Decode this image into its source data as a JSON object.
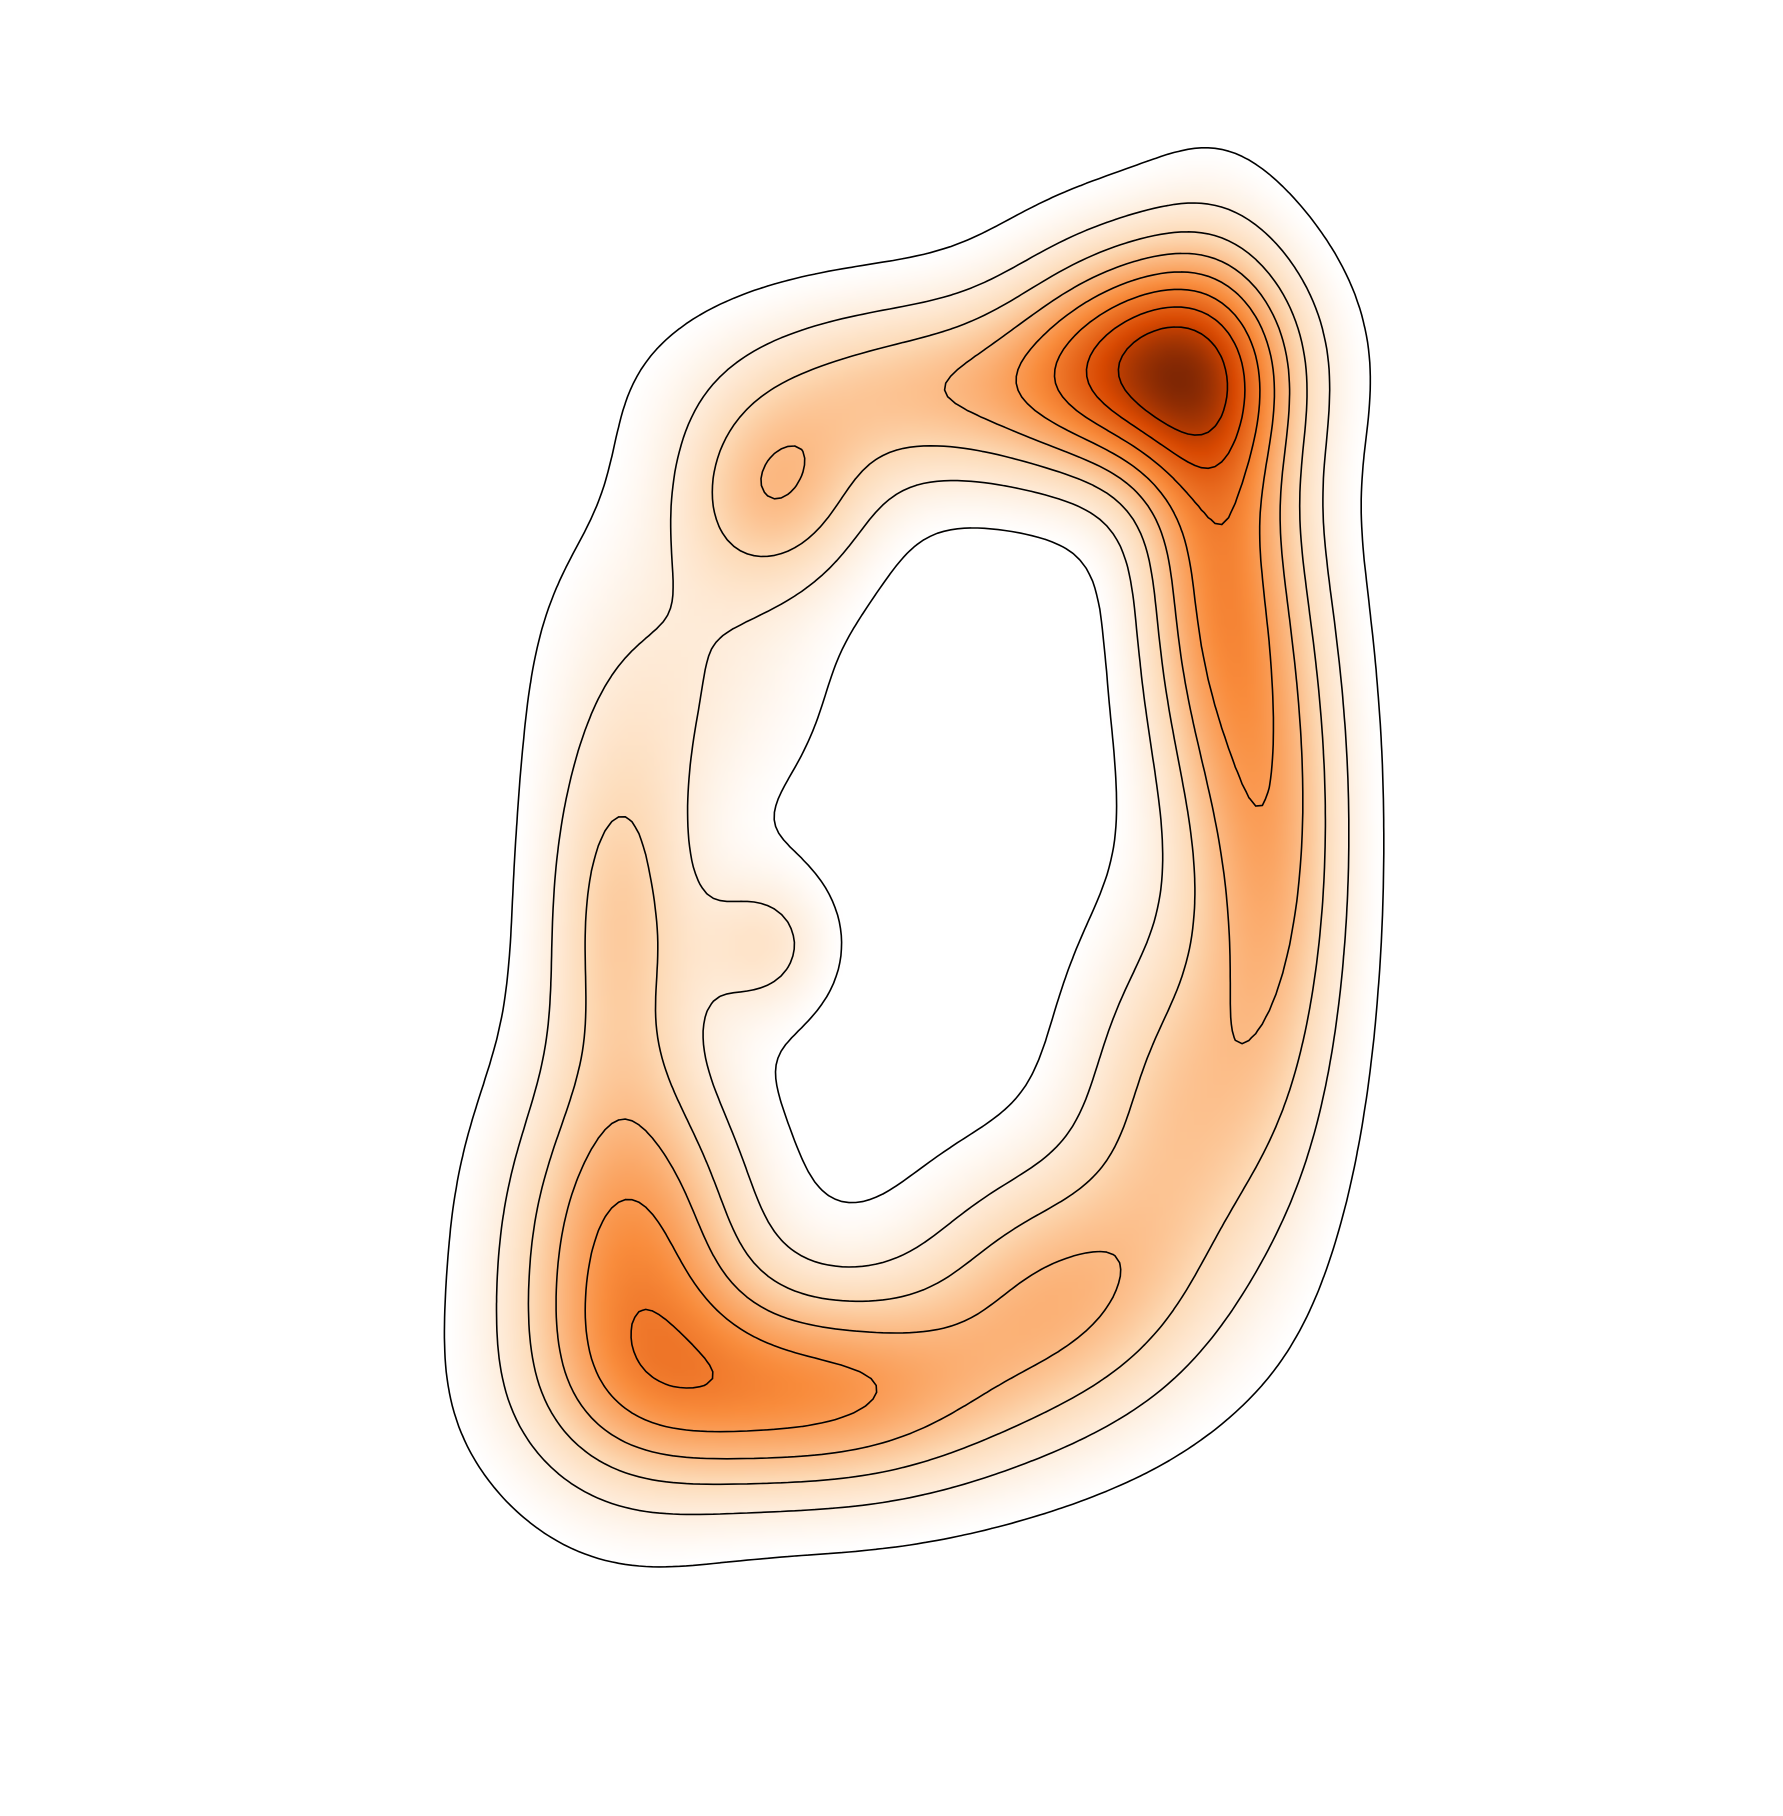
{
  "chart_data": {
    "type": "heatmap",
    "subtype": "kde-contour",
    "title": "",
    "xlabel": "",
    "ylabel": "",
    "axes_visible": false,
    "grid": false,
    "legend": "none",
    "colormap": "Oranges",
    "colors": {
      "low": "#ffffff",
      "light": "#fdd9b4",
      "mid": "#f98c3c",
      "high": "#d84801",
      "peak": "#7f2704",
      "contour_line": "#000000"
    },
    "contour_levels": 8,
    "xlim": [
      0,
      10
    ],
    "ylim": [
      0,
      10
    ],
    "density_clusters": [
      {
        "x": 7.0,
        "y": 8.2,
        "weight": 1.6,
        "sx": 0.75,
        "sy": 0.55
      },
      {
        "x": 7.5,
        "y": 6.9,
        "weight": 1.1,
        "sx": 0.45,
        "sy": 1.2
      },
      {
        "x": 8.0,
        "y": 5.0,
        "weight": 0.9,
        "sx": 0.45,
        "sy": 1.4
      },
      {
        "x": 5.2,
        "y": 8.0,
        "weight": 0.8,
        "sx": 1.2,
        "sy": 0.45
      },
      {
        "x": 3.9,
        "y": 7.3,
        "weight": 0.7,
        "sx": 0.55,
        "sy": 0.45
      },
      {
        "x": 2.6,
        "y": 4.5,
        "weight": 0.7,
        "sx": 0.45,
        "sy": 0.9
      },
      {
        "x": 3.8,
        "y": 4.3,
        "weight": 0.45,
        "sx": 0.4,
        "sy": 0.35
      },
      {
        "x": 2.7,
        "y": 2.2,
        "weight": 1.2,
        "sx": 0.7,
        "sy": 0.9
      },
      {
        "x": 4.2,
        "y": 1.3,
        "weight": 1.2,
        "sx": 1.2,
        "sy": 0.5
      },
      {
        "x": 6.2,
        "y": 2.0,
        "weight": 0.8,
        "sx": 0.8,
        "sy": 0.6
      },
      {
        "x": 7.2,
        "y": 3.2,
        "weight": 0.7,
        "sx": 0.6,
        "sy": 0.9
      },
      {
        "x": 3.2,
        "y": 6.2,
        "weight": 0.35,
        "sx": 0.8,
        "sy": 0.8
      }
    ]
  }
}
